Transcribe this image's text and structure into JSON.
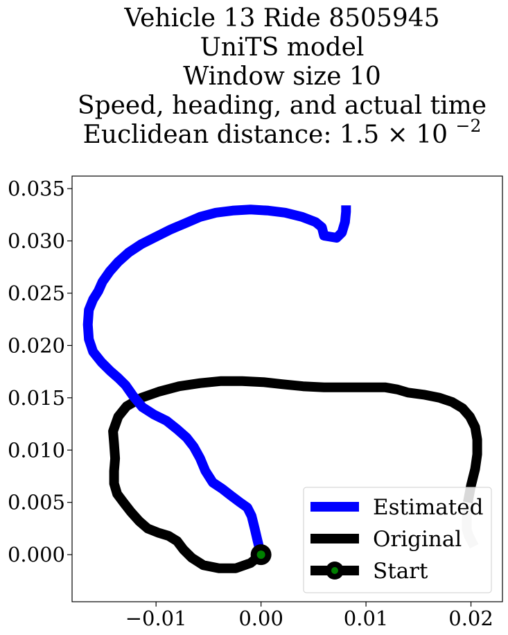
{
  "chart_data": {
    "type": "line",
    "title_lines": [
      "Vehicle 13 Ride 8505945",
      "UniTS model",
      "Window size 10",
      "Speed, heading, and actual time"
    ],
    "title_last_prefix": "Euclidean distance: 1.5",
    "title_last_times": "×",
    "title_last_base": "10",
    "title_last_exp": "−2",
    "xlim": [
      -0.018,
      0.023
    ],
    "ylim": [
      -0.0045,
      0.0362
    ],
    "x_ticks": [
      -0.01,
      0.0,
      0.01,
      0.02
    ],
    "x_tick_labels": [
      "−0.01",
      "0.00",
      "0.01",
      "0.02"
    ],
    "y_ticks": [
      0.0,
      0.005,
      0.01,
      0.015,
      0.02,
      0.025,
      0.03,
      0.035
    ],
    "y_tick_labels": [
      "0.000",
      "0.005",
      "0.010",
      "0.015",
      "0.020",
      "0.025",
      "0.030",
      "0.035"
    ],
    "grid": false,
    "legend_position": "lower-right",
    "series": [
      {
        "name": "Estimated",
        "color": "#0000ff",
        "points": [
          [
            0.0,
            0.0
          ],
          [
            -0.0003,
            0.0012
          ],
          [
            -0.0006,
            0.0025
          ],
          [
            -0.0009,
            0.0037
          ],
          [
            -0.0013,
            0.0045
          ],
          [
            -0.002,
            0.005
          ],
          [
            -0.0028,
            0.0056
          ],
          [
            -0.0037,
            0.0063
          ],
          [
            -0.0046,
            0.0069
          ],
          [
            -0.0053,
            0.008
          ],
          [
            -0.0058,
            0.0092
          ],
          [
            -0.0064,
            0.0103
          ],
          [
            -0.0071,
            0.0112
          ],
          [
            -0.008,
            0.012
          ],
          [
            -0.009,
            0.0128
          ],
          [
            -0.0102,
            0.0134
          ],
          [
            -0.0113,
            0.0141
          ],
          [
            -0.0122,
            0.0152
          ],
          [
            -0.0129,
            0.0162
          ],
          [
            -0.0136,
            0.0169
          ],
          [
            -0.0144,
            0.0176
          ],
          [
            -0.0152,
            0.0184
          ],
          [
            -0.016,
            0.0194
          ],
          [
            -0.0164,
            0.0206
          ],
          [
            -0.0165,
            0.022
          ],
          [
            -0.0164,
            0.0234
          ],
          [
            -0.016,
            0.0244
          ],
          [
            -0.0155,
            0.0252
          ],
          [
            -0.0151,
            0.0261
          ],
          [
            -0.0144,
            0.0271
          ],
          [
            -0.0136,
            0.028
          ],
          [
            -0.0126,
            0.0289
          ],
          [
            -0.0114,
            0.0297
          ],
          [
            -0.01,
            0.0304
          ],
          [
            -0.0086,
            0.0311
          ],
          [
            -0.0072,
            0.0317
          ],
          [
            -0.0058,
            0.0323
          ],
          [
            -0.0043,
            0.0327
          ],
          [
            -0.0027,
            0.0329
          ],
          [
            -0.001,
            0.033
          ],
          [
            0.0007,
            0.0329
          ],
          [
            0.0023,
            0.0327
          ],
          [
            0.0039,
            0.0323
          ],
          [
            0.0052,
            0.0318
          ],
          [
            0.0058,
            0.0313
          ],
          [
            0.006,
            0.0305
          ],
          [
            0.0072,
            0.0303
          ],
          [
            0.0077,
            0.0308
          ],
          [
            0.008,
            0.0318
          ],
          [
            0.0081,
            0.0328
          ],
          [
            0.0081,
            0.0334
          ]
        ]
      },
      {
        "name": "Original",
        "color": "#000000",
        "points": [
          [
            0.0,
            0.0
          ],
          [
            -0.001,
            -0.0008
          ],
          [
            -0.0024,
            -0.0013
          ],
          [
            -0.004,
            -0.0013
          ],
          [
            -0.0055,
            -0.001
          ],
          [
            -0.0066,
            -0.0003
          ],
          [
            -0.0074,
            0.0005
          ],
          [
            -0.008,
            0.0013
          ],
          [
            -0.0088,
            0.0018
          ],
          [
            -0.0098,
            0.0021
          ],
          [
            -0.0108,
            0.0025
          ],
          [
            -0.0116,
            0.0032
          ],
          [
            -0.0124,
            0.0041
          ],
          [
            -0.0131,
            0.005
          ],
          [
            -0.0137,
            0.0058
          ],
          [
            -0.014,
            0.0068
          ],
          [
            -0.014,
            0.008
          ],
          [
            -0.0139,
            0.0092
          ],
          [
            -0.014,
            0.0106
          ],
          [
            -0.0141,
            0.0118
          ],
          [
            -0.0136,
            0.0132
          ],
          [
            -0.0128,
            0.0142
          ],
          [
            -0.0114,
            0.015
          ],
          [
            -0.0097,
            0.0156
          ],
          [
            -0.0078,
            0.0161
          ],
          [
            -0.0058,
            0.0164
          ],
          [
            -0.0038,
            0.0166
          ],
          [
            -0.0018,
            0.0166
          ],
          [
            0.0002,
            0.0165
          ],
          [
            0.002,
            0.0163
          ],
          [
            0.004,
            0.0161
          ],
          [
            0.006,
            0.016
          ],
          [
            0.008,
            0.016
          ],
          [
            0.01,
            0.016
          ],
          [
            0.0118,
            0.016
          ],
          [
            0.013,
            0.0158
          ],
          [
            0.014,
            0.0155
          ],
          [
            0.0155,
            0.0153
          ],
          [
            0.017,
            0.015
          ],
          [
            0.0182,
            0.0146
          ],
          [
            0.0192,
            0.014
          ],
          [
            0.0199,
            0.0132
          ],
          [
            0.0204,
            0.0122
          ],
          [
            0.0206,
            0.011
          ],
          [
            0.0206,
            0.0096
          ],
          [
            0.0204,
            0.0082
          ],
          [
            0.02,
            0.0066
          ],
          [
            0.0197,
            0.005
          ],
          [
            0.0196,
            0.0034
          ],
          [
            0.0196,
            0.0024
          ]
        ],
        "fade_tail_start_index": 47,
        "fade_tail_color": "#c8c8c8",
        "extra_tail": [
          [
            0.0198,
            0.0018
          ],
          [
            0.0202,
            0.001
          ],
          [
            0.0203,
            0.0008
          ]
        ]
      }
    ],
    "start_marker": {
      "name": "Start",
      "x": 0.0,
      "y": 0.0,
      "outer_color": "#000000",
      "inner_color": "#008000"
    }
  }
}
